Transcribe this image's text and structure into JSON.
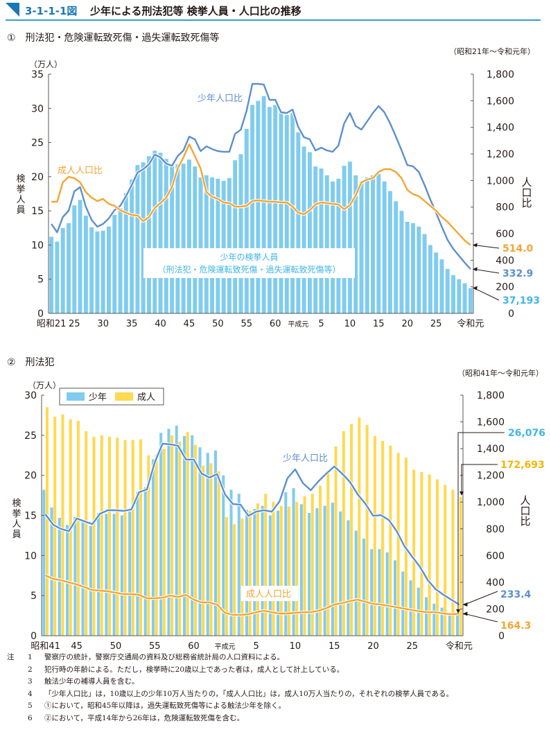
{
  "figure": {
    "number": "3-1-1-1図",
    "title": "少年による刑法犯等 検挙人員・人口比の推移"
  },
  "colors": {
    "juvenile_bar": "#80ccef",
    "adult_bar": "#ffd94f",
    "juvenile_line": "#5b8fcf",
    "adult_line": "#f3a532",
    "label_cyan": "#3fb6e6",
    "axis": "#595757",
    "header_accent": "#1a78b4"
  },
  "chart_data": [
    {
      "id": "chart1",
      "type": "bar+line",
      "title": "①　刑法犯・危険運転致死傷・過失運転致死傷等",
      "range_note": "（昭和21年～令和元年）",
      "ylabel_left": "検挙人員",
      "ylabel_left_unit": "（万人）",
      "ylabel_right": "人口比",
      "ylim_left": [
        0,
        35
      ],
      "ylim_right": [
        0,
        1800
      ],
      "yticks_left": [
        "0",
        "5",
        "10",
        "15",
        "20",
        "25",
        "30",
        "35"
      ],
      "yticks_right": [
        "0",
        "200",
        "400",
        "600",
        "800",
        "1,000",
        "1,200",
        "1,400",
        "1,600",
        "1,800"
      ],
      "x": [
        "昭和21",
        "22",
        "23",
        "24",
        "25",
        "26",
        "27",
        "28",
        "29",
        "30",
        "31",
        "32",
        "33",
        "34",
        "35",
        "36",
        "37",
        "38",
        "39",
        "40",
        "41",
        "42",
        "43",
        "44",
        "45",
        "46",
        "47",
        "48",
        "49",
        "50",
        "51",
        "52",
        "53",
        "54",
        "55",
        "56",
        "57",
        "58",
        "59",
        "60",
        "61",
        "62",
        "63",
        "平成元",
        "2",
        "3",
        "4",
        "5",
        "6",
        "7",
        "8",
        "9",
        "10",
        "11",
        "12",
        "13",
        "14",
        "15",
        "16",
        "17",
        "18",
        "19",
        "20",
        "21",
        "22",
        "23",
        "24",
        "25",
        "26",
        "27",
        "28",
        "29",
        "30",
        "令和元"
      ],
      "xtick_labels": [
        {
          "index": 0,
          "label": "昭和21"
        },
        {
          "index": 4,
          "label": "25"
        },
        {
          "index": 9,
          "label": "30"
        },
        {
          "index": 14,
          "label": "35"
        },
        {
          "index": 19,
          "label": "40"
        },
        {
          "index": 24,
          "label": "45"
        },
        {
          "index": 29,
          "label": "50"
        },
        {
          "index": 34,
          "label": "55"
        },
        {
          "index": 39,
          "label": "60"
        },
        {
          "index": 43,
          "label": "平成元"
        },
        {
          "index": 47,
          "label": "5"
        },
        {
          "index": 52,
          "label": "10"
        },
        {
          "index": 57,
          "label": "15"
        },
        {
          "index": 62,
          "label": "20"
        },
        {
          "index": 67,
          "label": "25"
        },
        {
          "index": 73,
          "label": "令和元"
        }
      ],
      "bars": {
        "name": "少年の検挙人員（刑法犯・危険運転致死傷・過失運転致死傷等）",
        "label_line1": "少年の検挙人員",
        "label_line2": "（刑法犯・危険運転致死傷・過失運転致死傷等）",
        "values": [
          11.2,
          10.5,
          12.5,
          13.2,
          15.8,
          16.6,
          14.3,
          12.6,
          12.0,
          12.1,
          12.7,
          14.4,
          15.4,
          17.6,
          19.6,
          21.7,
          22.1,
          23.0,
          23.8,
          23.5,
          22.6,
          21.8,
          21.8,
          21.9,
          22.5,
          21.5,
          19.9,
          20.2,
          19.9,
          19.7,
          19.4,
          19.8,
          22.4,
          23.3,
          27.0,
          30.5,
          31.1,
          31.8,
          30.2,
          30.5,
          29.3,
          29.0,
          29.3,
          26.5,
          24.4,
          23.6,
          21.5,
          21.2,
          20.2,
          19.3,
          19.7,
          21.6,
          22.2,
          20.2,
          19.3,
          19.9,
          20.2,
          20.4,
          19.3,
          17.9,
          16.4,
          15.0,
          13.4,
          13.2,
          12.7,
          11.6,
          10.0,
          8.9,
          7.9,
          6.5,
          5.6,
          5.0,
          4.4,
          3.7
        ]
      },
      "series": [
        {
          "name": "少年人口比",
          "values": [
            673,
            610,
            725,
            772,
            918,
            950,
            803,
            704,
            652,
            673,
            715,
            777,
            809,
            882,
            965,
            1059,
            1085,
            1122,
            1195,
            1174,
            1127,
            1111,
            1184,
            1226,
            1330,
            1310,
            1221,
            1257,
            1236,
            1221,
            1216,
            1216,
            1351,
            1383,
            1524,
            1727,
            1727,
            1722,
            1607,
            1607,
            1513,
            1508,
            1534,
            1403,
            1325,
            1310,
            1226,
            1247,
            1226,
            1216,
            1263,
            1430,
            1508,
            1409,
            1383,
            1445,
            1508,
            1560,
            1513,
            1430,
            1330,
            1226,
            1116,
            1106,
            1064,
            965,
            856,
            757,
            652,
            553,
            485,
            433,
            381,
            332.9
          ]
        },
        {
          "name": "成人人口比",
          "values": [
            840,
            840,
            986,
            1028,
            1017,
            986,
            913,
            871,
            845,
            861,
            824,
            809,
            777,
            757,
            741,
            736,
            694,
            725,
            793,
            830,
            871,
            950,
            1090,
            1174,
            1273,
            1184,
            1090,
            913,
            877,
            861,
            835,
            830,
            803,
            803,
            809,
            845,
            850,
            845,
            840,
            840,
            835,
            835,
            803,
            757,
            746,
            777,
            819,
            835,
            830,
            824,
            819,
            783,
            814,
            887,
            986,
            1007,
            1017,
            1064,
            1085,
            1085,
            1064,
            1017,
            929,
            897,
            882,
            845,
            809,
            772,
            725,
            689,
            642,
            595,
            548,
            514.0
          ]
        }
      ],
      "annotations": [
        {
          "text": "514.0",
          "series": "成人人口比",
          "color_key": "adult_line"
        },
        {
          "text": "332.9",
          "series": "少年人口比",
          "color_key": "juvenile_line"
        },
        {
          "text": "37,193",
          "series": "少年の検挙人員",
          "color_key": "label_cyan"
        }
      ],
      "line_labels": {
        "juvenile": "少年人口比",
        "adult": "成人人口比"
      }
    },
    {
      "id": "chart2",
      "type": "bar+line",
      "title": "②　刑法犯",
      "range_note": "（昭和41年～令和元年）",
      "ylabel_left": "検挙人員",
      "ylabel_left_unit": "（万人）",
      "ylabel_right": "人口比",
      "ylim_left": [
        0,
        30
      ],
      "ylim_right": [
        0,
        1800
      ],
      "yticks_left": [
        "0",
        "5",
        "10",
        "15",
        "20",
        "25",
        "30"
      ],
      "yticks_right": [
        "0",
        "200",
        "400",
        "600",
        "800",
        "1,000",
        "1,200",
        "1,400",
        "1,600",
        "1,800"
      ],
      "legend": [
        "少年",
        "成人"
      ],
      "legend_position": "top-left",
      "x": [
        "昭和41",
        "42",
        "43",
        "44",
        "45",
        "46",
        "47",
        "48",
        "49",
        "50",
        "51",
        "52",
        "53",
        "54",
        "55",
        "56",
        "57",
        "58",
        "59",
        "60",
        "61",
        "62",
        "63",
        "平成元",
        "2",
        "3",
        "4",
        "5",
        "6",
        "7",
        "8",
        "9",
        "10",
        "11",
        "12",
        "13",
        "14",
        "15",
        "16",
        "17",
        "18",
        "19",
        "20",
        "21",
        "22",
        "23",
        "24",
        "25",
        "26",
        "27",
        "28",
        "29",
        "30",
        "令和元"
      ],
      "xtick_labels": [
        {
          "index": 0,
          "label": "昭和41"
        },
        {
          "index": 4,
          "label": "45"
        },
        {
          "index": 9,
          "label": "50"
        },
        {
          "index": 14,
          "label": "55"
        },
        {
          "index": 19,
          "label": "60"
        },
        {
          "index": 23,
          "label": "平成元"
        },
        {
          "index": 27,
          "label": "5"
        },
        {
          "index": 32,
          "label": "10"
        },
        {
          "index": 37,
          "label": "15"
        },
        {
          "index": 42,
          "label": "20"
        },
        {
          "index": 47,
          "label": "25"
        },
        {
          "index": 53,
          "label": "令和元"
        }
      ],
      "bars": [
        {
          "name": "少年",
          "values": [
            18.2,
            16.0,
            14.7,
            13.8,
            14.8,
            14.2,
            13.7,
            15.3,
            15.2,
            15.2,
            15.0,
            15.5,
            17.9,
            18.5,
            22.0,
            25.3,
            25.8,
            26.2,
            24.9,
            25.0,
            23.5,
            22.8,
            23.1,
            20.0,
            18.2,
            17.7,
            15.7,
            15.8,
            16.2,
            15.0,
            15.6,
            17.9,
            18.4,
            16.4,
            15.3,
            15.9,
            16.2,
            16.6,
            15.5,
            14.4,
            13.1,
            12.1,
            10.8,
            10.8,
            10.4,
            9.4,
            8.0,
            6.9,
            6.0,
            4.8,
            4.0,
            3.5,
            2.8,
            2.6
          ]
        },
        {
          "name": "成人",
          "values": [
            28.5,
            27.3,
            27.6,
            27.0,
            26.8,
            25.5,
            24.8,
            25.0,
            24.8,
            24.7,
            24.4,
            24.4,
            24.5,
            22.5,
            22.6,
            23.3,
            25.0,
            24.2,
            25.4,
            23.8,
            21.2,
            21.5,
            20.5,
            14.8,
            13.9,
            14.6,
            15.6,
            16.5,
            17.7,
            16.7,
            16.2,
            16.1,
            16.7,
            17.4,
            17.7,
            18.7,
            20.6,
            23.6,
            25.5,
            26.4,
            27.2,
            26.3,
            24.9,
            24.3,
            23.7,
            22.8,
            22.2,
            20.7,
            20.4,
            20.1,
            19.5,
            18.8,
            18.2,
            17.3
          ]
        }
      ],
      "series": [
        {
          "name": "少年人口比",
          "values": [
            908,
            830,
            799,
            783,
            877,
            856,
            835,
            913,
            939,
            939,
            934,
            944,
            1074,
            1095,
            1297,
            1437,
            1432,
            1421,
            1318,
            1318,
            1214,
            1183,
            1209,
            1058,
            986,
            980,
            897,
            928,
            939,
            928,
            1006,
            1178,
            1245,
            1141,
            1089,
            1157,
            1214,
            1266,
            1214,
            1152,
            1058,
            986,
            897,
            902,
            866,
            783,
            669,
            591,
            514,
            415,
            348,
            306,
            270,
            233.4
          ]
        },
        {
          "name": "成人人口比",
          "values": [
            451,
            425,
            415,
            399,
            384,
            363,
            342,
            337,
            332,
            322,
            311,
            311,
            306,
            280,
            280,
            285,
            301,
            290,
            306,
            270,
            249,
            249,
            233,
            171,
            156,
            156,
            161,
            176,
            187,
            176,
            166,
            166,
            171,
            176,
            176,
            187,
            207,
            233,
            244,
            259,
            270,
            254,
            238,
            233,
            223,
            213,
            202,
            192,
            182,
            176,
            176,
            166,
            161,
            164.3
          ]
        }
      ],
      "annotations": [
        {
          "text": "26,076",
          "series": "少年",
          "color_key": "label_cyan"
        },
        {
          "text": "172,693",
          "series": "成人",
          "color_key": "adult_bar_label"
        },
        {
          "text": "233.4",
          "series": "少年人口比",
          "color_key": "juvenile_line"
        },
        {
          "text": "164.3",
          "series": "成人人口比",
          "color_key": "adult_line"
        }
      ],
      "line_labels": {
        "juvenile": "少年人口比",
        "adult": "成人人口比"
      }
    }
  ],
  "notes": {
    "lead": "注",
    "items": [
      {
        "num": "1",
        "text": "警察庁の統計，警察庁交通局の資料及び総務省統計局の人口資料による。"
      },
      {
        "num": "2",
        "text": "犯行時の年齢による。ただし，検挙時に20歳以上であった者は，成人として計上している。"
      },
      {
        "num": "3",
        "text": "触法少年の補導人員を含む。"
      },
      {
        "num": "4",
        "text": "「少年人口比」は，10歳以上の少年10万人当たりの，「成人人口比」は，成人10万人当たりの，それぞれの検挙人員である。"
      },
      {
        "num": "5",
        "text": "①において，昭和45年以降は，過失運転致死傷等による触法少年を除く。"
      },
      {
        "num": "6",
        "text": "②において，平成14年から26年は，危険運転致死傷を含む。"
      }
    ]
  }
}
